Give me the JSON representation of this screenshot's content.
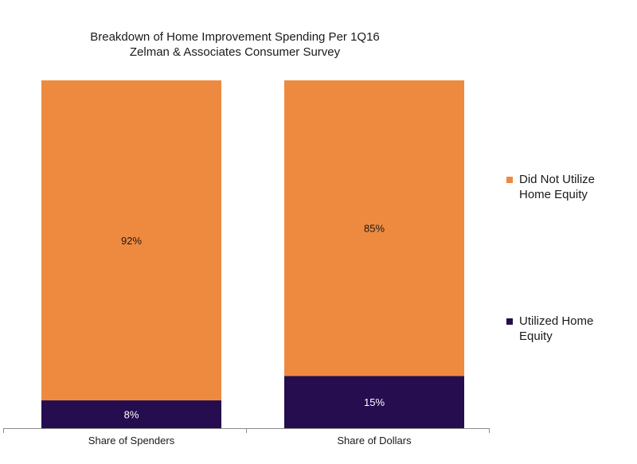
{
  "chart_data": {
    "type": "bar",
    "stacked": true,
    "title": "Breakdown of Home Improvement Spending Per 1Q16",
    "subtitle": "Zelman & Associates Consumer Survey",
    "categories": [
      "Share of Spenders",
      "Share of Dollars"
    ],
    "series": [
      {
        "name": "Utilized Home Equity",
        "values": [
          8,
          15
        ],
        "labels": [
          "8%",
          "15%"
        ],
        "color": "#250d50"
      },
      {
        "name": "Did Not Utilize Home Equity",
        "values": [
          92,
          85
        ],
        "labels": [
          "92%",
          "85%"
        ],
        "color": "#ee8a3f"
      }
    ],
    "ylim": [
      0,
      100
    ],
    "legend_position": "right",
    "grid": false
  },
  "legend": {
    "items": [
      {
        "line1": "Did Not Utilize",
        "line2": "Home Equity",
        "color": "#ee8a3f"
      },
      {
        "line1": "Utilized Home",
        "line2": "Equity",
        "color": "#250d50"
      }
    ]
  }
}
